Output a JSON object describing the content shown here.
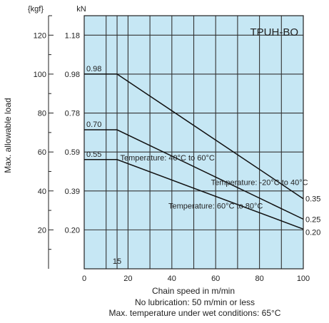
{
  "chart_data": {
    "type": "line",
    "product_label": "TPUH-BO",
    "xlabel": "Chain speed in m/min",
    "ylabel": "Max. allowable load",
    "y_unit_left": "{kgf}",
    "y_unit_right": "kN",
    "xlim": [
      0,
      100
    ],
    "ylim_kgf": [
      0,
      130
    ],
    "x_ticks": [
      "0",
      "20",
      "40",
      "60",
      "80",
      "100"
    ],
    "y_ticks_kgf": [
      "20",
      "40",
      "60",
      "80",
      "100",
      "120"
    ],
    "y_ticks_kn": [
      "0.20",
      "0.39",
      "0.59",
      "0.78",
      "0.98",
      "1.18"
    ],
    "x_marker_label": "15",
    "x_marker_value": 15,
    "grid": true,
    "background_color": "#c6e7f4",
    "line_color": "#111111",
    "series": [
      {
        "name": "Temperature: -20°C to 40°C",
        "x": [
          0,
          15,
          100
        ],
        "y_kgf": [
          100,
          100,
          36
        ],
        "start_label": "0.98",
        "end_label": "0.35"
      },
      {
        "name": "Temperature: 40°C to 60°C",
        "x": [
          0,
          15,
          100
        ],
        "y_kgf": [
          71.4,
          71.4,
          25.5
        ],
        "start_label": "0.70",
        "end_label": "0.25"
      },
      {
        "name": "Temperature: 60°C to 80°C",
        "x": [
          0,
          15,
          100
        ],
        "y_kgf": [
          56.1,
          56.1,
          20.4
        ],
        "start_label": "0.55",
        "end_label": "0.20"
      }
    ],
    "notes": [
      "No lubrication: 50 m/min or less",
      "Max. temperature under wet conditions: 65°C"
    ]
  }
}
